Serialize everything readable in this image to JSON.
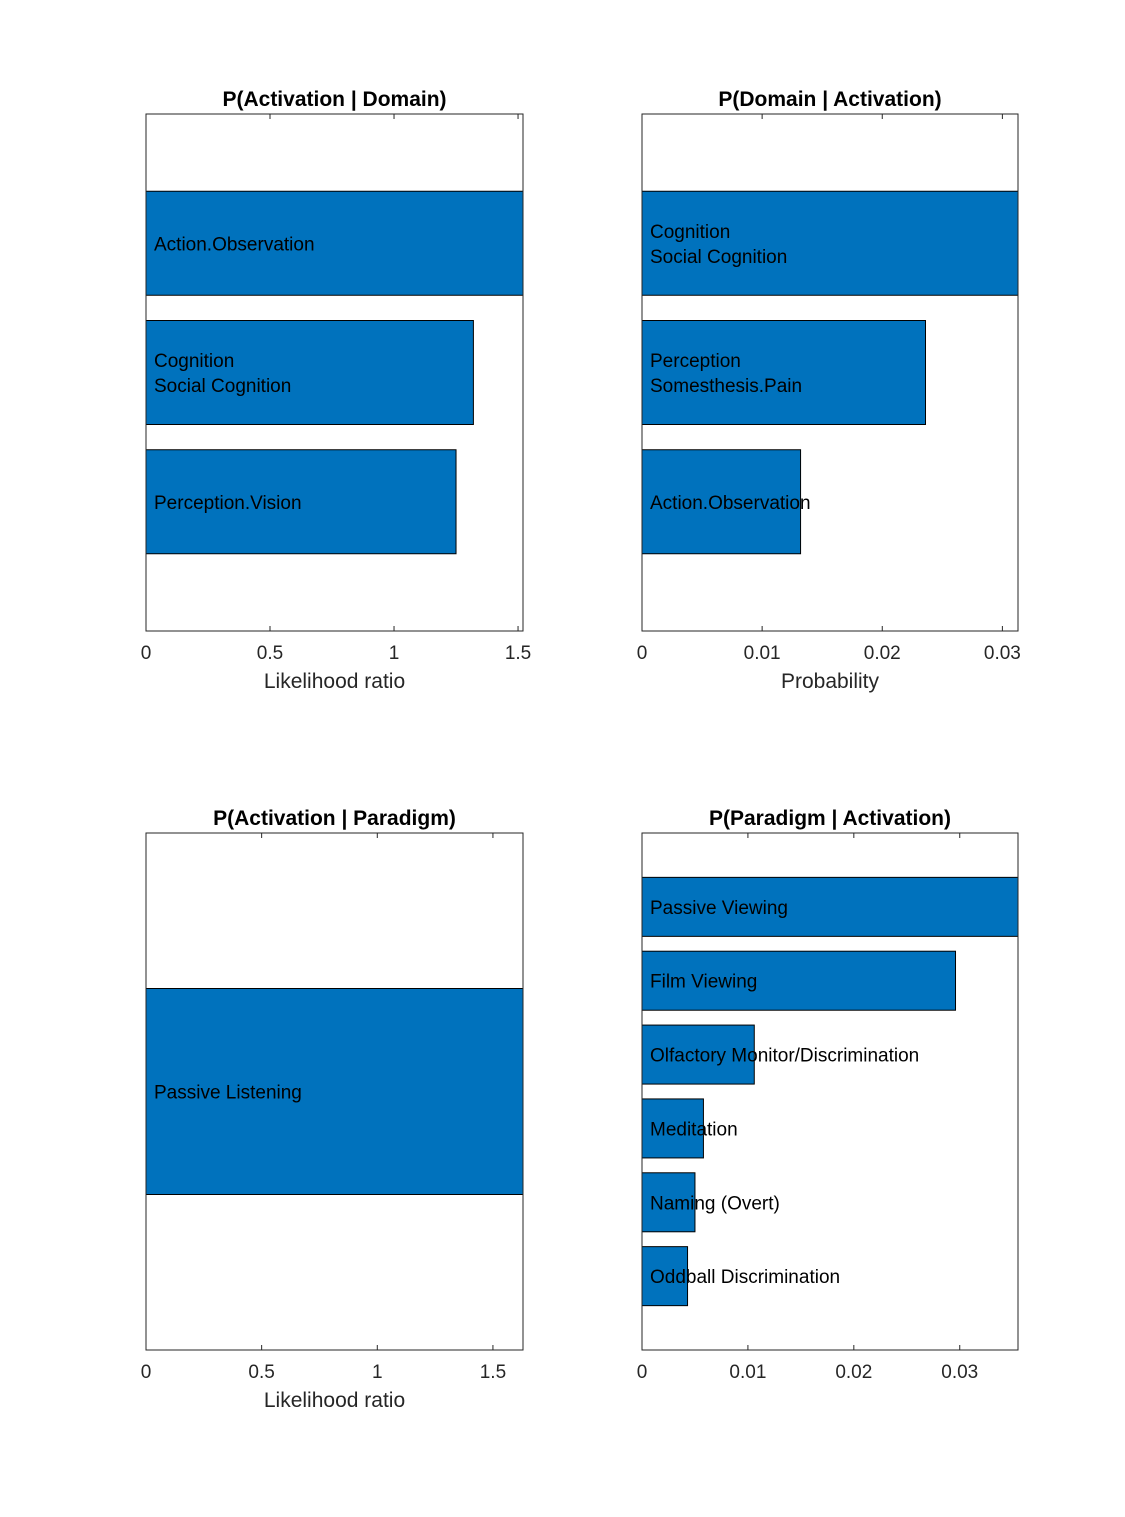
{
  "figure": {
    "bar_color": "#0072BD",
    "edge_color": "#000000"
  },
  "chart_data": [
    {
      "type": "bar",
      "orientation": "horizontal",
      "title": "P(Activation | Domain)",
      "xlabel": "Likelihood ratio",
      "xlim": [
        0,
        1.52
      ],
      "xticks": [
        0,
        0.5,
        1,
        1.5
      ],
      "xticklabels": [
        "0",
        "0.5",
        "1",
        "1.5"
      ],
      "ylim": [
        0,
        4
      ],
      "categories": [
        "Action.Observation",
        "Cognition\nSocial Cognition",
        "Perception.Vision"
      ],
      "values": [
        1.52,
        1.32,
        1.25
      ]
    },
    {
      "type": "bar",
      "orientation": "horizontal",
      "title": "P(Domain | Activation)",
      "xlabel": "Probability",
      "xlim": [
        0,
        0.0313
      ],
      "xticks": [
        0,
        0.01,
        0.02,
        0.03
      ],
      "xticklabels": [
        "0",
        "0.01",
        "0.02",
        "0.03"
      ],
      "ylim": [
        0,
        4
      ],
      "categories": [
        "Cognition\nSocial Cognition",
        "Perception\nSomesthesis.Pain",
        "Action.Observation"
      ],
      "values": [
        0.0313,
        0.0236,
        0.0132
      ]
    },
    {
      "type": "bar",
      "orientation": "horizontal",
      "title": "P(Activation | Paradigm)",
      "xlabel": "Likelihood ratio",
      "xlim": [
        0,
        1.63
      ],
      "xticks": [
        0,
        0.5,
        1,
        1.5
      ],
      "xticklabels": [
        "0",
        "0.5",
        "1",
        "1.5"
      ],
      "ylim": [
        0,
        2
      ],
      "categories": [
        "Passive Listening"
      ],
      "values": [
        1.63
      ]
    },
    {
      "type": "bar",
      "orientation": "horizontal",
      "title": "P(Paradigm | Activation)",
      "xlabel": "",
      "xlim": [
        0,
        0.0355
      ],
      "xticks": [
        0,
        0.01,
        0.02,
        0.03
      ],
      "xticklabels": [
        "0",
        "0.01",
        "0.02",
        "0.03"
      ],
      "ylim": [
        0,
        7
      ],
      "categories": [
        "Passive Viewing",
        "Film Viewing",
        "Olfactory Monitor/Discrimination",
        "Meditation",
        "Naming (Overt)",
        "Oddball Discrimination"
      ],
      "values": [
        0.0355,
        0.0296,
        0.0106,
        0.0058,
        0.005,
        0.0043
      ]
    }
  ]
}
